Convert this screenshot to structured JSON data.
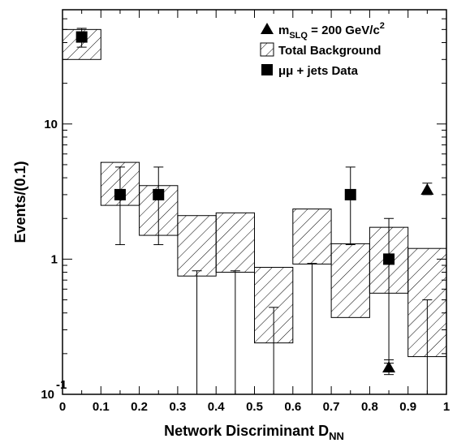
{
  "chart_data": {
    "type": "bar",
    "xlabel": "Network Discriminant D",
    "xlabel_sub": "NN",
    "ylabel": "Events/(0.1)",
    "xlim": [
      0,
      1
    ],
    "ylim": [
      0.1,
      70
    ],
    "yscale": "log",
    "x_ticks": [
      "0",
      "0.1",
      "0.2",
      "0.3",
      "0.4",
      "0.5",
      "0.6",
      "0.7",
      "0.8",
      "0.9",
      "1"
    ],
    "y_ticks": [
      {
        "value": 10,
        "label": "10",
        "exp": ""
      },
      {
        "value": 1,
        "label": "1",
        "exp": ""
      },
      {
        "value": 0.1,
        "label": "10",
        "exp": "-1"
      }
    ],
    "legend_position": "top-right",
    "legend": {
      "signal_main": "m",
      "signal_sub": "SLQ",
      "signal_rest": " = 200 GeV/c",
      "signal_sup": "2",
      "background": "Total Background",
      "data": "μμ + jets Data"
    },
    "background_bands": [
      {
        "bin": [
          0.0,
          0.1
        ],
        "low": 30,
        "high": 50
      },
      {
        "bin": [
          0.1,
          0.2
        ],
        "low": 2.5,
        "high": 5.2
      },
      {
        "bin": [
          0.2,
          0.3
        ],
        "low": 1.5,
        "high": 3.5
      },
      {
        "bin": [
          0.3,
          0.4
        ],
        "low": 0.75,
        "high": 2.1
      },
      {
        "bin": [
          0.4,
          0.5
        ],
        "low": 0.8,
        "high": 2.2
      },
      {
        "bin": [
          0.5,
          0.6
        ],
        "low": 0.24,
        "high": 0.87
      },
      {
        "bin": [
          0.6,
          0.7
        ],
        "low": 0.92,
        "high": 2.35
      },
      {
        "bin": [
          0.7,
          0.8
        ],
        "low": 0.37,
        "high": 1.3
      },
      {
        "bin": [
          0.8,
          0.9
        ],
        "low": 0.56,
        "high": 1.72
      },
      {
        "bin": [
          0.9,
          1.0
        ],
        "low": 0.19,
        "high": 1.2
      }
    ],
    "data_points": [
      {
        "x": 0.05,
        "y": 44,
        "err_low": 37,
        "err_high": 51
      },
      {
        "x": 0.15,
        "y": 3,
        "err_low": 1.28,
        "err_high": 4.8
      },
      {
        "x": 0.25,
        "y": 3,
        "err_low": 1.28,
        "err_high": 4.8
      },
      {
        "x": 0.35,
        "y": 0,
        "err_low": 0.1,
        "err_high": 0.82
      },
      {
        "x": 0.45,
        "y": 0,
        "err_low": 0.1,
        "err_high": 0.82
      },
      {
        "x": 0.55,
        "y": 0,
        "err_low": 0.1,
        "err_high": 0.44
      },
      {
        "x": 0.65,
        "y": 0,
        "err_low": 0.1,
        "err_high": 0.93
      },
      {
        "x": 0.75,
        "y": 3,
        "err_low": 1.28,
        "err_high": 4.8
      },
      {
        "x": 0.85,
        "y": 1,
        "err_low": 0.17,
        "err_high": 2.0
      },
      {
        "x": 0.95,
        "y": 0,
        "err_low": 0.1,
        "err_high": 0.5
      }
    ],
    "signal_points": [
      {
        "x": 0.85,
        "y": 0.16,
        "err_low": 0.14,
        "err_high": 0.18
      },
      {
        "x": 0.95,
        "y": 3.3,
        "err_low": 3.0,
        "err_high": 3.65
      }
    ]
  }
}
